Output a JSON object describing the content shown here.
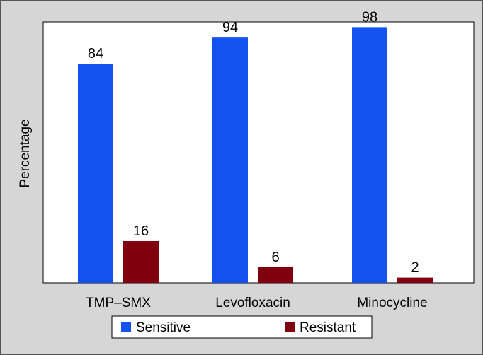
{
  "chart_data": {
    "type": "bar",
    "categories": [
      "TMP–SMX",
      "Levofloxacin",
      "Minocycline"
    ],
    "series": [
      {
        "name": "Sensitive",
        "values": [
          84,
          94,
          98
        ],
        "color": "#1452f0"
      },
      {
        "name": "Resistant",
        "values": [
          16,
          6,
          2
        ],
        "color": "#800010"
      }
    ],
    "title": "",
    "xlabel": "",
    "ylabel": "Percentage",
    "ylim": [
      0,
      100
    ],
    "grid": false,
    "legend_position": "bottom",
    "data_labels": true
  }
}
